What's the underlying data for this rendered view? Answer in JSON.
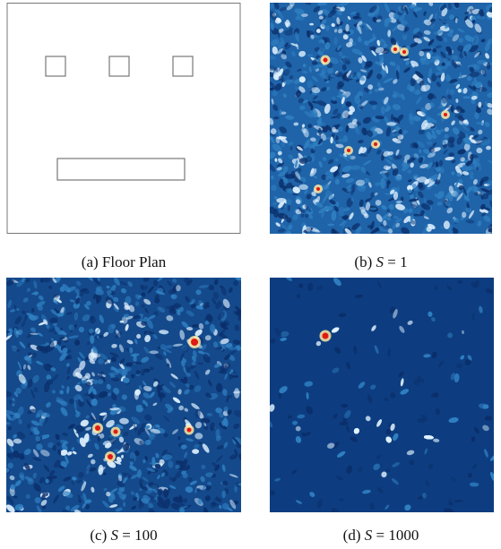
{
  "figure": {
    "panels": [
      {
        "id": "a",
        "label_prefix": "(a) ",
        "label_text": "Floor Plan",
        "math": null
      },
      {
        "id": "b",
        "label_prefix": "(b) ",
        "label_text": null,
        "math": {
          "var": "S",
          "op": " = ",
          "val": "1"
        }
      },
      {
        "id": "c",
        "label_prefix": "(c) ",
        "label_text": null,
        "math": {
          "var": "S",
          "op": " = ",
          "val": "100"
        }
      },
      {
        "id": "d",
        "label_prefix": "(d) ",
        "label_text": null,
        "math": {
          "var": "S",
          "op": " = ",
          "val": "1000"
        }
      }
    ],
    "colors": {
      "outline": "#777777",
      "heat_low": "#0b2f6b",
      "heat_mid": "#2f7fc1",
      "heat_high": "#dff1ff",
      "hot": "#e11a12"
    }
  }
}
